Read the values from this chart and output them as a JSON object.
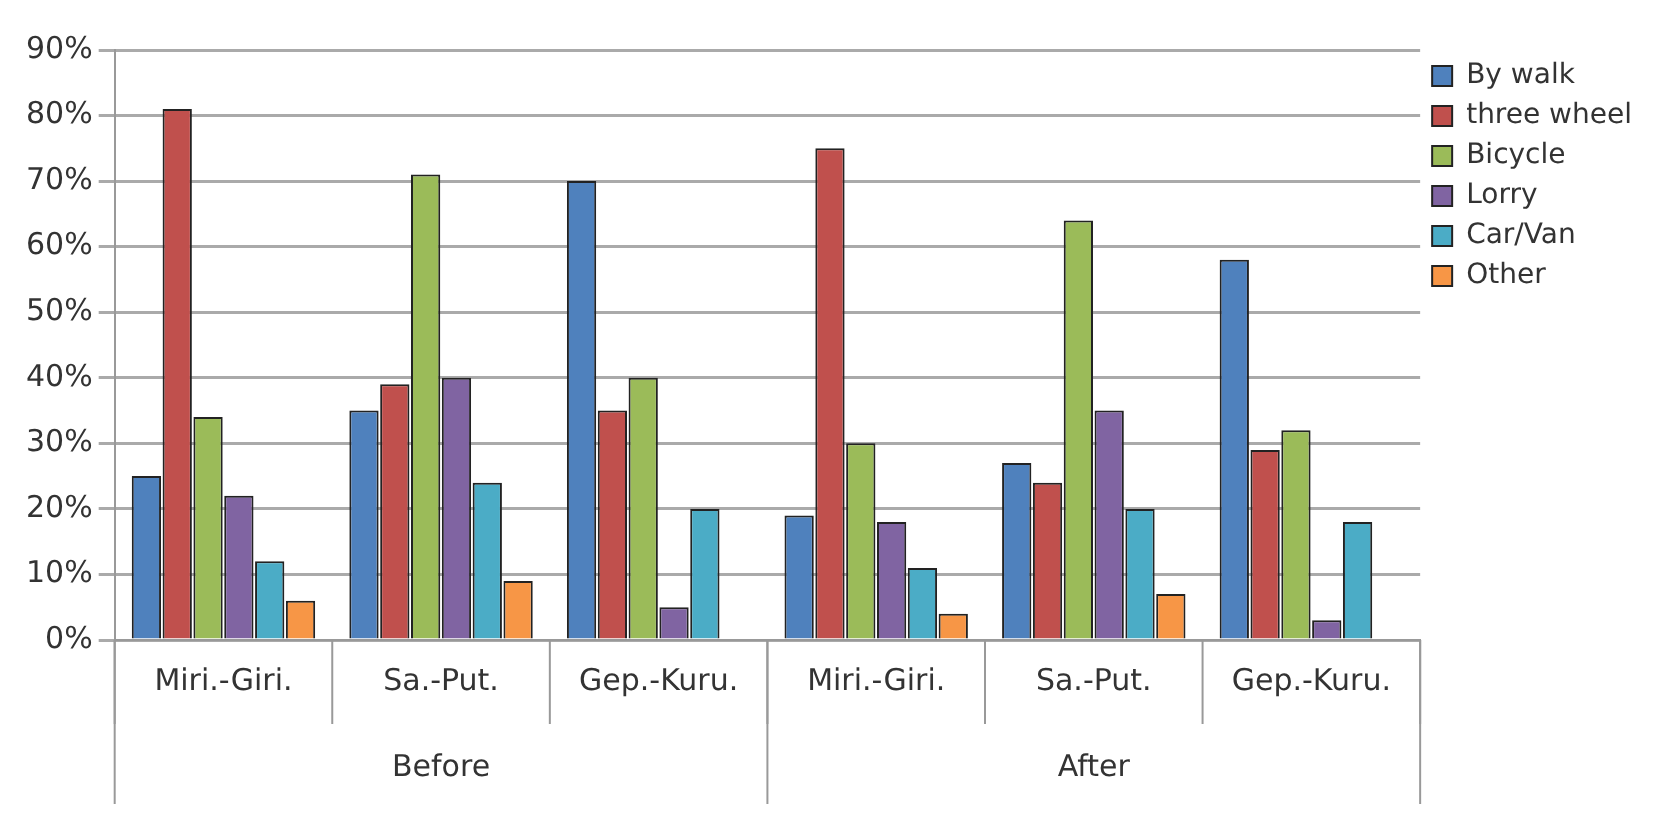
{
  "chart_data": {
    "type": "bar",
    "categories": [
      "Miri.-Giri.",
      "Sa.-Put.",
      "Gep.-Kuru.",
      "Miri.-Giri.",
      "Sa.-Put.",
      "Gep.-Kuru."
    ],
    "series": [
      {
        "name": "By walk",
        "color": "#4f81bd",
        "values": [
          25,
          35,
          70,
          19,
          27,
          58
        ]
      },
      {
        "name": "three wheel",
        "color": "#c0504d",
        "values": [
          81,
          39,
          35,
          75,
          24,
          29
        ]
      },
      {
        "name": "Bicycle",
        "color": "#9bbb59",
        "values": [
          34,
          71,
          40,
          30,
          64,
          32
        ]
      },
      {
        "name": "Lorry",
        "color": "#8064a2",
        "values": [
          22,
          40,
          5,
          18,
          35,
          3
        ]
      },
      {
        "name": "Car/Van",
        "color": "#4bacc6",
        "values": [
          12,
          24,
          20,
          11,
          20,
          18
        ]
      },
      {
        "name": "Other",
        "color": "#f79646",
        "values": [
          6,
          9,
          0,
          4,
          7,
          0
        ]
      }
    ],
    "ylim": [
      0,
      90
    ],
    "yticks": [
      {
        "value": 0,
        "label": "0%"
      },
      {
        "value": 10,
        "label": "10%"
      },
      {
        "value": 20,
        "label": "20%"
      },
      {
        "value": 30,
        "label": "30%"
      },
      {
        "value": 40,
        "label": "40%"
      },
      {
        "value": 50,
        "label": "50%"
      },
      {
        "value": 60,
        "label": "60%"
      },
      {
        "value": 70,
        "label": "70%"
      },
      {
        "value": 80,
        "label": "80%"
      },
      {
        "value": 90,
        "label": "90%"
      }
    ],
    "grid": "y",
    "legend": "top right",
    "annotations": [
      "Before",
      "After"
    ]
  }
}
